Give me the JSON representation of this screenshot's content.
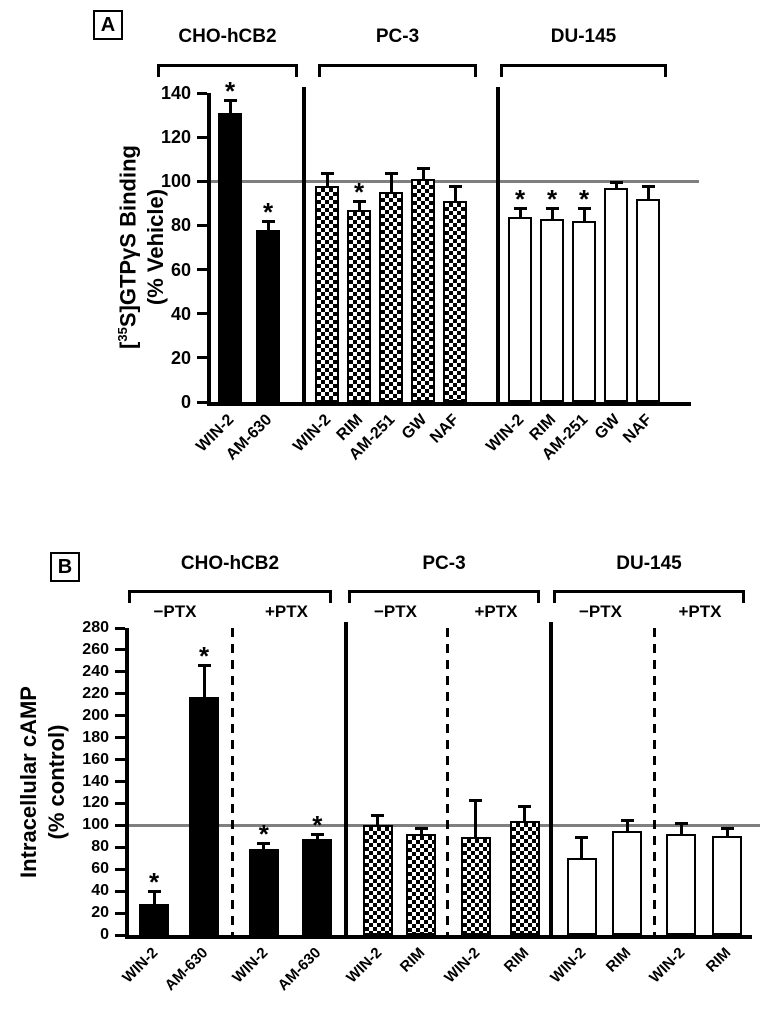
{
  "panel_a": {
    "label": "A",
    "y_title": {
      "pre": "[",
      "sup": "35",
      "post": "S]GTPγS Binding",
      "line2": "(% Vehicle)"
    }
  },
  "panel_b": {
    "label": "B",
    "y_title": {
      "line1": "Intracellular cAMP",
      "line2": "(% control)"
    }
  },
  "colors": {
    "bar_black": "#000000",
    "bar_white": "#ffffff",
    "axis": "#000000",
    "reference_line": "#7f7f7f"
  },
  "chart_data": [
    {
      "type": "bar",
      "panel": "A",
      "ylabel": "[35S]GTPγS Binding (% Vehicle)",
      "ylim": [
        0,
        140
      ],
      "ytick_step": 20,
      "reference_line": 100,
      "grid": false,
      "legend": "none",
      "groups": [
        {
          "name": "CHO-hCB2",
          "style": "solid",
          "bars": [
            {
              "label": "WIN-2",
              "value": 131,
              "error": 5,
              "sig": true
            },
            {
              "label": "AM-630",
              "value": 78,
              "error": 3,
              "sig": true
            }
          ]
        },
        {
          "name": "PC-3",
          "style": "checker",
          "bars": [
            {
              "label": "WIN-2",
              "value": 98,
              "error": 5,
              "sig": false
            },
            {
              "label": "RIM",
              "value": 87,
              "error": 3,
              "sig": true
            },
            {
              "label": "AM-251",
              "value": 95,
              "error": 8,
              "sig": false
            },
            {
              "label": "GW",
              "value": 101,
              "error": 4,
              "sig": false
            },
            {
              "label": "NAF",
              "value": 91,
              "error": 6,
              "sig": false
            }
          ]
        },
        {
          "name": "DU-145",
          "style": "open",
          "bars": [
            {
              "label": "WIN-2",
              "value": 84,
              "error": 3,
              "sig": true
            },
            {
              "label": "RIM",
              "value": 83,
              "error": 4,
              "sig": true
            },
            {
              "label": "AM-251",
              "value": 82,
              "error": 5,
              "sig": true
            },
            {
              "label": "GW",
              "value": 97,
              "error": 2,
              "sig": false
            },
            {
              "label": "NAF",
              "value": 92,
              "error": 5,
              "sig": false
            }
          ]
        }
      ]
    },
    {
      "type": "bar",
      "panel": "B",
      "ylabel": "Intracellular cAMP (% control)",
      "ylim": [
        0,
        280
      ],
      "ytick_step": 20,
      "reference_line": 100,
      "grid": false,
      "legend": "none",
      "groups": [
        {
          "name": "CHO-hCB2",
          "style": "solid",
          "subgroups": [
            {
              "name": "−PTX",
              "bars": [
                {
                  "label": "WIN-2",
                  "value": 28,
                  "error": 10,
                  "sig": true
                },
                {
                  "label": "AM-630",
                  "value": 217,
                  "error": 27,
                  "sig": true
                }
              ]
            },
            {
              "name": "+PTX",
              "bars": [
                {
                  "label": "WIN-2",
                  "value": 78,
                  "error": 4,
                  "sig": true
                },
                {
                  "label": "AM-630",
                  "value": 88,
                  "error": 2,
                  "sig": true
                }
              ]
            }
          ]
        },
        {
          "name": "PC-3",
          "style": "checker",
          "subgroups": [
            {
              "name": "−PTX",
              "bars": [
                {
                  "label": "WIN-2",
                  "value": 100,
                  "error": 8,
                  "sig": false
                },
                {
                  "label": "RIM",
                  "value": 92,
                  "error": 4,
                  "sig": false
                }
              ]
            },
            {
              "name": "+PTX",
              "bars": [
                {
                  "label": "WIN-2",
                  "value": 89,
                  "error": 32,
                  "sig": false
                },
                {
                  "label": "RIM",
                  "value": 104,
                  "error": 12,
                  "sig": false
                }
              ]
            }
          ]
        },
        {
          "name": "DU-145",
          "style": "open",
          "subgroups": [
            {
              "name": "−PTX",
              "bars": [
                {
                  "label": "WIN-2",
                  "value": 70,
                  "error": 18,
                  "sig": false
                },
                {
                  "label": "RIM",
                  "value": 95,
                  "error": 8,
                  "sig": false
                }
              ]
            },
            {
              "name": "+PTX",
              "bars": [
                {
                  "label": "WIN-2",
                  "value": 92,
                  "error": 8,
                  "sig": false
                },
                {
                  "label": "RIM",
                  "value": 90,
                  "error": 6,
                  "sig": false
                }
              ]
            }
          ]
        }
      ]
    }
  ]
}
